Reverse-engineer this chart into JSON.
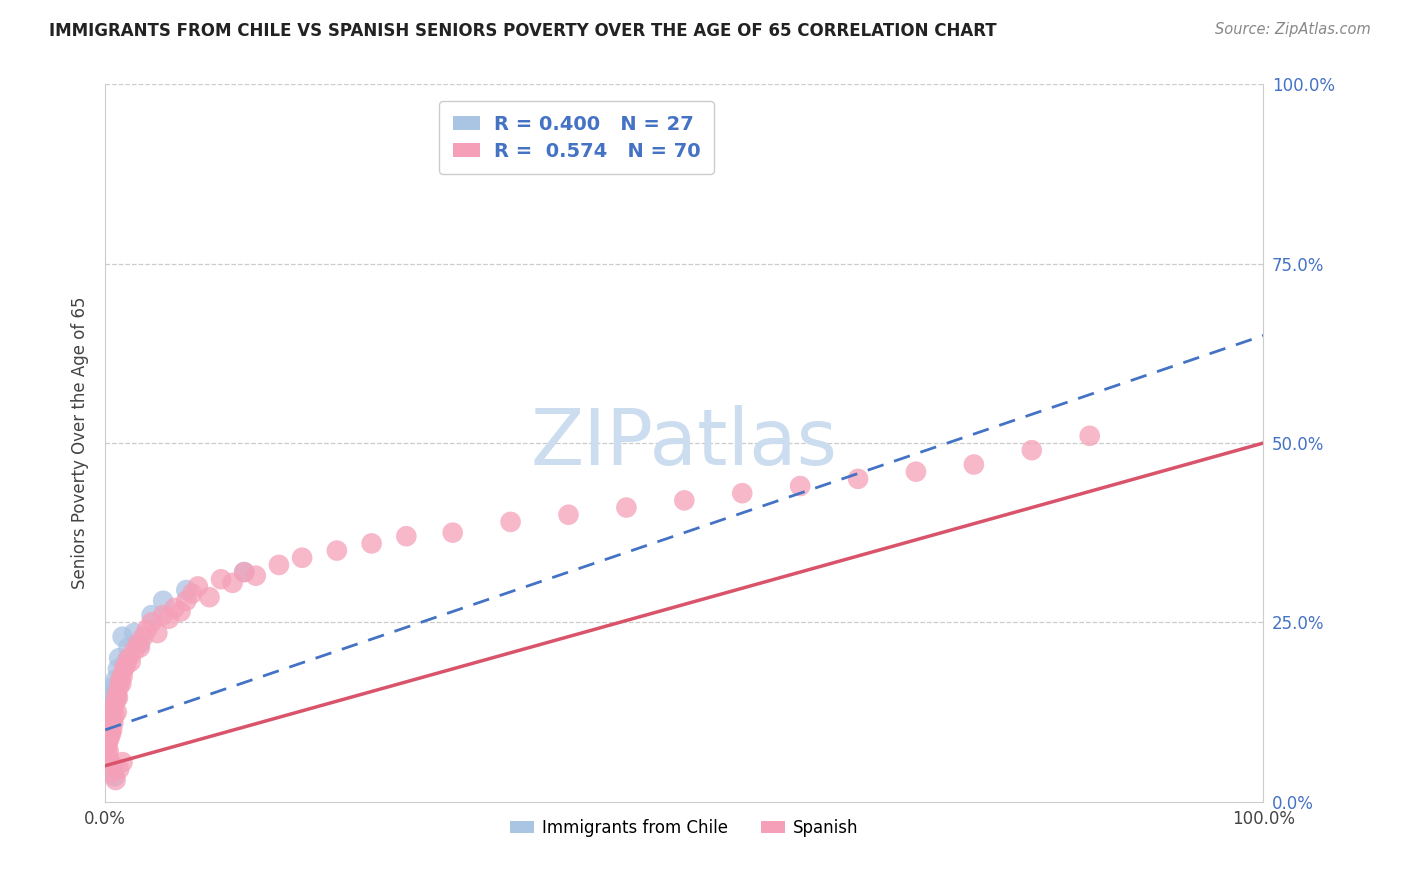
{
  "title": "IMMIGRANTS FROM CHILE VS SPANISH SENIORS POVERTY OVER THE AGE OF 65 CORRELATION CHART",
  "source": "Source: ZipAtlas.com",
  "ylabel": "Seniors Poverty Over the Age of 65",
  "chile_R": 0.4,
  "chile_N": 27,
  "spanish_R": 0.574,
  "spanish_N": 70,
  "chile_color": "#aac4e4",
  "spanish_color": "#f5a0b8",
  "chile_line_color": "#4472c4",
  "spanish_line_color": "#d9546a",
  "watermark_color": "#ccddf0",
  "chile_x": [
    0.001,
    0.002,
    0.002,
    0.003,
    0.003,
    0.004,
    0.004,
    0.005,
    0.005,
    0.006,
    0.006,
    0.007,
    0.008,
    0.009,
    0.01,
    0.011,
    0.012,
    0.015,
    0.018,
    0.02,
    0.025,
    0.03,
    0.04,
    0.05,
    0.07,
    0.12,
    0.008
  ],
  "chile_y": [
    0.105,
    0.115,
    0.09,
    0.13,
    0.095,
    0.14,
    0.1,
    0.12,
    0.145,
    0.11,
    0.15,
    0.16,
    0.155,
    0.17,
    0.145,
    0.185,
    0.2,
    0.23,
    0.195,
    0.215,
    0.235,
    0.22,
    0.26,
    0.28,
    0.295,
    0.32,
    0.035
  ],
  "spanish_x": [
    0.001,
    0.001,
    0.002,
    0.002,
    0.003,
    0.003,
    0.003,
    0.004,
    0.004,
    0.005,
    0.005,
    0.006,
    0.006,
    0.007,
    0.007,
    0.008,
    0.009,
    0.01,
    0.01,
    0.011,
    0.012,
    0.013,
    0.014,
    0.015,
    0.016,
    0.018,
    0.02,
    0.022,
    0.025,
    0.028,
    0.03,
    0.033,
    0.036,
    0.04,
    0.045,
    0.05,
    0.055,
    0.06,
    0.065,
    0.07,
    0.075,
    0.08,
    0.09,
    0.1,
    0.11,
    0.12,
    0.13,
    0.15,
    0.17,
    0.2,
    0.23,
    0.26,
    0.3,
    0.35,
    0.4,
    0.45,
    0.5,
    0.55,
    0.6,
    0.65,
    0.7,
    0.75,
    0.8,
    0.85,
    0.003,
    0.005,
    0.007,
    0.009,
    0.012,
    0.015
  ],
  "spanish_y": [
    0.08,
    0.095,
    0.075,
    0.1,
    0.085,
    0.11,
    0.07,
    0.09,
    0.105,
    0.095,
    0.115,
    0.1,
    0.125,
    0.11,
    0.13,
    0.12,
    0.14,
    0.125,
    0.15,
    0.145,
    0.16,
    0.17,
    0.165,
    0.175,
    0.185,
    0.19,
    0.2,
    0.195,
    0.21,
    0.22,
    0.215,
    0.23,
    0.24,
    0.25,
    0.235,
    0.26,
    0.255,
    0.27,
    0.265,
    0.28,
    0.29,
    0.3,
    0.285,
    0.31,
    0.305,
    0.32,
    0.315,
    0.33,
    0.34,
    0.35,
    0.36,
    0.37,
    0.375,
    0.39,
    0.4,
    0.41,
    0.42,
    0.43,
    0.44,
    0.45,
    0.46,
    0.47,
    0.49,
    0.51,
    0.06,
    0.04,
    0.05,
    0.03,
    0.045,
    0.055
  ],
  "chile_trendline_x0": 0.0,
  "chile_trendline_y0": 0.1,
  "chile_trendline_x1": 1.0,
  "chile_trendline_y1": 0.65,
  "spanish_trendline_x0": 0.0,
  "spanish_trendline_y0": 0.05,
  "spanish_trendline_x1": 1.0,
  "spanish_trendline_y1": 0.5,
  "xlim": [
    0.0,
    1.0
  ],
  "ylim": [
    0.0,
    1.0
  ],
  "xticks": [
    0.0,
    1.0
  ],
  "xticklabels": [
    "0.0%",
    "100.0%"
  ],
  "right_yticks": [
    0.0,
    0.25,
    0.5,
    0.75,
    1.0
  ],
  "right_yticklabels": [
    "0.0%",
    "25.0%",
    "50.0%",
    "75.0%",
    "100.0%"
  ]
}
